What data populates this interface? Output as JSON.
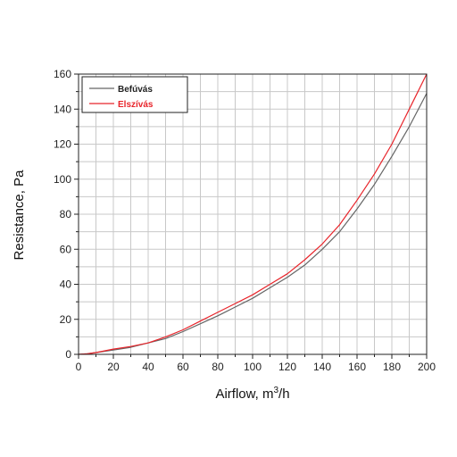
{
  "chart_data": {
    "type": "line",
    "xlabel": "Airflow, m",
    "xlabel_sup": "3",
    "xlabel_tail": "/h",
    "ylabel": "Resistance, Pa",
    "xlim": [
      0,
      200
    ],
    "ylim": [
      0,
      160
    ],
    "x_ticks": [
      0,
      20,
      40,
      60,
      80,
      100,
      120,
      140,
      160,
      180,
      200
    ],
    "y_ticks": [
      0,
      20,
      40,
      60,
      80,
      100,
      120,
      140,
      160
    ],
    "grid": true,
    "legend_position": "top-left",
    "series": [
      {
        "name": "Befúvás",
        "color": "#666666",
        "x": [
          0,
          5,
          10,
          20,
          30,
          40,
          50,
          60,
          70,
          80,
          90,
          100,
          110,
          120,
          130,
          140,
          150,
          160,
          170,
          180,
          190,
          200
        ],
        "y": [
          0,
          0.3,
          1,
          2.5,
          4,
          6.5,
          9,
          13,
          17.5,
          22,
          27,
          32,
          38,
          44,
          51,
          60,
          70,
          83,
          97,
          113,
          130,
          149
        ]
      },
      {
        "name": "Elszívás",
        "color": "#e8242a",
        "x": [
          0,
          5,
          10,
          20,
          30,
          40,
          50,
          60,
          70,
          80,
          90,
          100,
          110,
          120,
          130,
          140,
          150,
          160,
          170,
          180,
          190,
          200
        ],
        "y": [
          0,
          0.3,
          1,
          3,
          4.5,
          6.5,
          10,
          14,
          19,
          24,
          29,
          34,
          40,
          46,
          54,
          63,
          74,
          88,
          103,
          120,
          140,
          160
        ]
      }
    ]
  }
}
